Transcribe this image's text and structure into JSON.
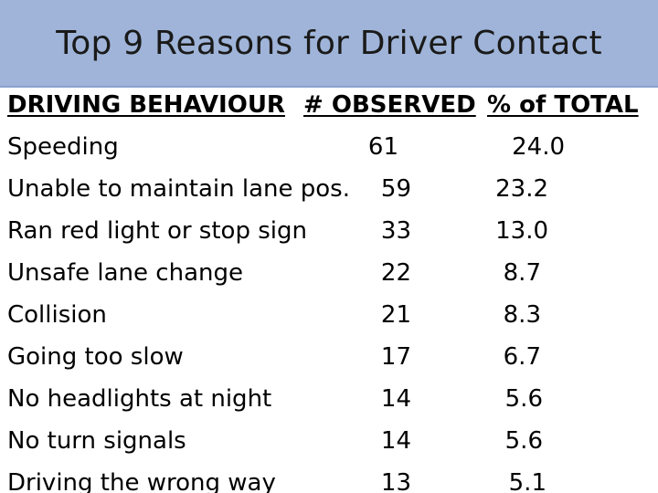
{
  "slide": {
    "title": "Top 9 Reasons for Driver Contact"
  },
  "table": {
    "headers": {
      "behaviour": "DRIVING BEHAVIOUR",
      "observed": "# OBSERVED",
      "percent": "% of TOTAL"
    },
    "rows": [
      {
        "behaviour": "Speeding",
        "observed": "61",
        "percent": "24.0"
      },
      {
        "behaviour": "Unable to maintain lane pos.",
        "observed": "59",
        "percent": "23.2"
      },
      {
        "behaviour": "Ran red light or stop sign",
        "observed": "33",
        "percent": "13.0"
      },
      {
        "behaviour": "Unsafe lane change",
        "observed": "22",
        "percent": "8.7"
      },
      {
        "behaviour": "Collision",
        "observed": "21",
        "percent": "8.3"
      },
      {
        "behaviour": "Going too slow",
        "observed": "17",
        "percent": "6.7"
      },
      {
        "behaviour": "No headlights at night",
        "observed": "14",
        "percent": "5.6"
      },
      {
        "behaviour": "No turn signals",
        "observed": "14",
        "percent": "5.6"
      },
      {
        "behaviour": "Driving the wrong way",
        "observed": "13",
        "percent": "5.1"
      }
    ]
  }
}
